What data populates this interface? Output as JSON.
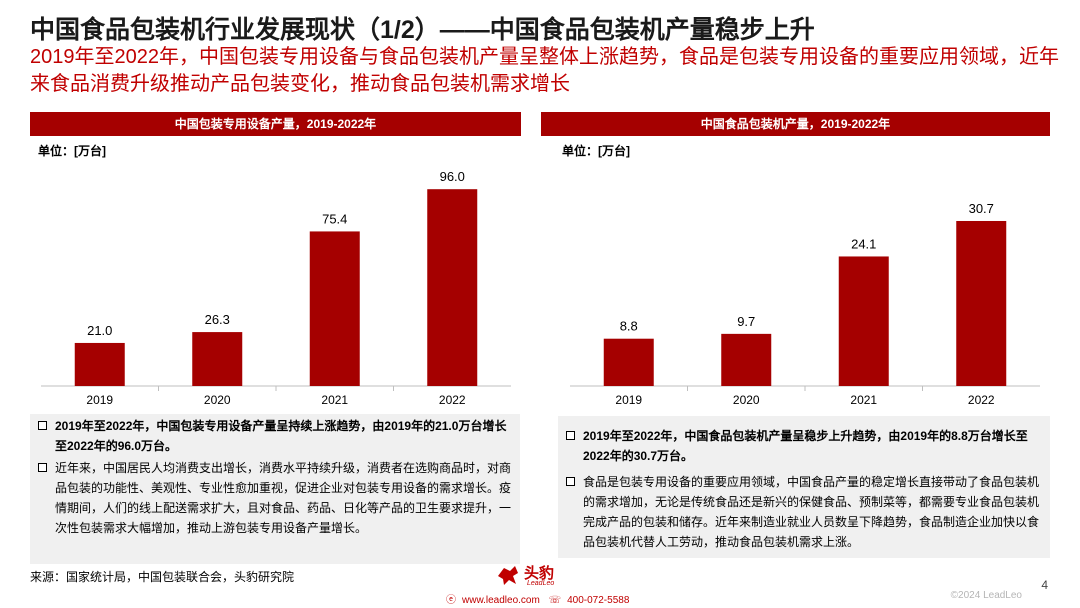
{
  "header": {
    "title": "中国食品包装机行业发展现状（1/2）——中国食品包装机产量稳步上升",
    "subtitle": "2019年至2022年，中国包装专用设备与食品包装机产量呈整体上涨趋势，食品是包装专用设备的重要应用领域，近年来食品消费升级推动产品包装变化，推动食品包装机需求增长"
  },
  "left_panel": {
    "header": "中国包装专用设备产量，2019-2022年",
    "unit": "单位：[万台]",
    "notes": [
      "2019年至2022年，中国包装专用设备产量呈持续上涨趋势，由2019年的21.0万台增长至2022年的96.0万台。",
      "近年来，中国居民人均消费支出增长，消费水平持续升级，消费者在选购商品时，对商品包装的功能性、美观性、专业性愈加重视，促进企业对包装专用设备的需求增长。疫情期间，人们的线上配送需求扩大，且对食品、药品、日化等产品的卫生要求提升，一次性包装需求大幅增加，推动上游包装专用设备产量增长。"
    ]
  },
  "right_panel": {
    "header": "中国食品包装机产量，2019-2022年",
    "unit": "单位：[万台]",
    "notes": [
      "2019年至2022年，中国食品包装机产量呈稳步上升趋势，由2019年的8.8万台增长至2022年的30.7万台。",
      "食品是包装专用设备的重要应用领域，中国食品产量的稳定增长直接带动了食品包装机的需求增加，无论是传统食品还是新兴的保健食品、预制菜等，都需要专业食品包装机完成产品的包装和储存。近年来制造业就业人员数呈下降趋势，食品制造企业加快以食品包装机代替人工劳动，推动食品包装机需求上涨。"
    ]
  },
  "chart_data": [
    {
      "type": "bar",
      "title": "中国包装专用设备产量，2019-2022年",
      "ylabel": "单位：[万台]",
      "categories": [
        "2019",
        "2020",
        "2021",
        "2022"
      ],
      "values": [
        21.0,
        26.3,
        75.4,
        96.0
      ],
      "value_labels": [
        "21.0",
        "26.3",
        "75.4",
        "96.0"
      ],
      "ylim": [
        0,
        100
      ],
      "bar_color": "#a50000",
      "grid": false
    },
    {
      "type": "bar",
      "title": "中国食品包装机产量，2019-2022年",
      "ylabel": "单位：[万台]",
      "categories": [
        "2019",
        "2020",
        "2021",
        "2022"
      ],
      "values": [
        8.8,
        9.7,
        24.1,
        30.7
      ],
      "value_labels": [
        "8.8",
        "9.7",
        "24.1",
        "30.7"
      ],
      "ylim": [
        0,
        32
      ],
      "bar_color": "#a50000",
      "grid": false
    }
  ],
  "footer": {
    "source": "来源：国家统计局，中国包装联合会，头豹研究院",
    "page_number": "4",
    "copyright": "©2024 LeadLeo",
    "logo_text": "头豹",
    "logo_sub": "LeadLeo",
    "website": "www.leadleo.com",
    "phone": "400-072-5588"
  }
}
